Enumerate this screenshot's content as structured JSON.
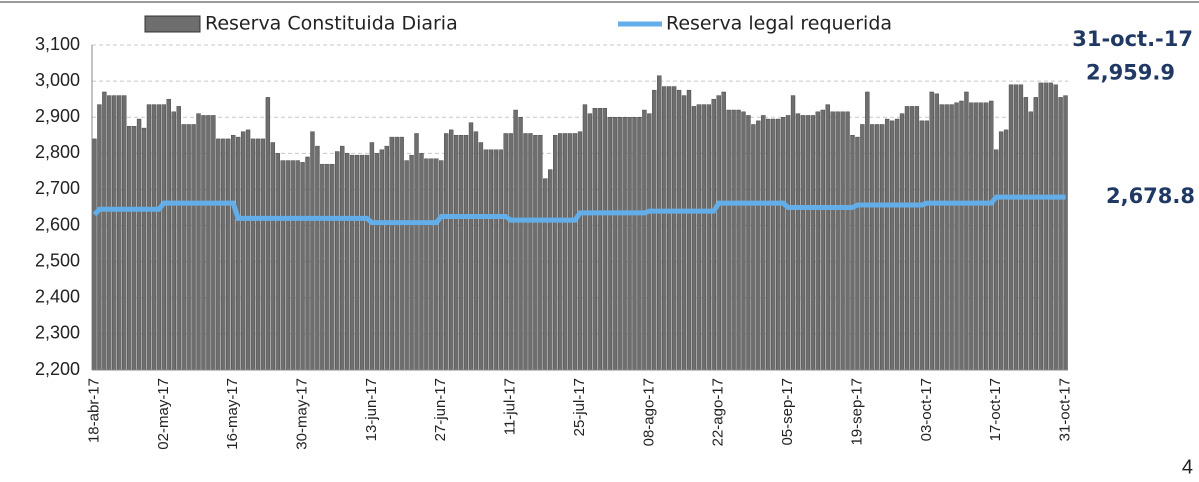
{
  "chart_data": {
    "type": "bar_line",
    "categories": [
      "18-abr-17",
      null,
      null,
      null,
      null,
      null,
      null,
      null,
      null,
      null,
      null,
      null,
      null,
      null,
      "02-may-17",
      null,
      null,
      null,
      null,
      null,
      null,
      null,
      null,
      null,
      null,
      null,
      null,
      null,
      "16-may-17",
      null,
      null,
      null,
      null,
      null,
      null,
      null,
      null,
      null,
      null,
      null,
      null,
      null,
      "30-may-17",
      null,
      null,
      null,
      null,
      null,
      null,
      null,
      null,
      null,
      null,
      null,
      null,
      null,
      "13-jun-17",
      null,
      null,
      null,
      null,
      null,
      null,
      null,
      null,
      null,
      null,
      null,
      null,
      null,
      "27-jun-17",
      null,
      null,
      null,
      null,
      null,
      null,
      null,
      null,
      null,
      null,
      null,
      null,
      null,
      "11-jul-17",
      null,
      null,
      null,
      null,
      null,
      null,
      null,
      null,
      null,
      null,
      null,
      null,
      null,
      "25-jul-17",
      null,
      null,
      null,
      null,
      null,
      null,
      null,
      null,
      null,
      null,
      null,
      null,
      null,
      "08-ago-17",
      null,
      null,
      null,
      null,
      null,
      null,
      null,
      null,
      null,
      null,
      null,
      null,
      null,
      "22-ago-17",
      null,
      null,
      null,
      null,
      null,
      null,
      null,
      null,
      null,
      null,
      null,
      null,
      null,
      "05-sep-17",
      null,
      null,
      null,
      null,
      null,
      null,
      null,
      null,
      null,
      null,
      null,
      null,
      null,
      "19-sep-17",
      null,
      null,
      null,
      null,
      null,
      null,
      null,
      null,
      null,
      null,
      null,
      null,
      null,
      "03-oct-17",
      null,
      null,
      null,
      null,
      null,
      null,
      null,
      null,
      null,
      null,
      null,
      null,
      null,
      "17-oct-17",
      null,
      null,
      null,
      null,
      null,
      null,
      null,
      null,
      null,
      null,
      null,
      null,
      null,
      "31-oct-17"
    ],
    "series": [
      {
        "name": "Reserva Constituida Diaria",
        "color": "#6e6e6e",
        "kind": "bar",
        "values": [
          2840,
          2935,
          2970,
          2960,
          2960,
          2960,
          2960,
          2875,
          2875,
          2895,
          2870,
          2935,
          2935,
          2935,
          2935,
          2950,
          2915,
          2930,
          2880,
          2880,
          2880,
          2910,
          2905,
          2905,
          2905,
          2840,
          2840,
          2840,
          2850,
          2845,
          2860,
          2865,
          2840,
          2840,
          2840,
          2955,
          2830,
          2800,
          2780,
          2780,
          2780,
          2780,
          2775,
          2790,
          2860,
          2820,
          2770,
          2770,
          2770,
          2805,
          2820,
          2800,
          2795,
          2795,
          2795,
          2795,
          2830,
          2800,
          2810,
          2820,
          2845,
          2845,
          2845,
          2780,
          2795,
          2855,
          2800,
          2785,
          2785,
          2785,
          2780,
          2855,
          2865,
          2850,
          2850,
          2850,
          2885,
          2860,
          2830,
          2810,
          2810,
          2810,
          2810,
          2855,
          2855,
          2920,
          2900,
          2855,
          2855,
          2850,
          2850,
          2730,
          2755,
          2850,
          2855,
          2855,
          2855,
          2855,
          2860,
          2935,
          2910,
          2925,
          2925,
          2925,
          2900,
          2900,
          2900,
          2900,
          2900,
          2900,
          2900,
          2920,
          2910,
          2975,
          3015,
          2985,
          2985,
          2985,
          2975,
          2960,
          2975,
          2930,
          2935,
          2935,
          2935,
          2950,
          2960,
          2970,
          2920,
          2920,
          2920,
          2915,
          2905,
          2880,
          2890,
          2905,
          2895,
          2895,
          2895,
          2900,
          2905,
          2960,
          2910,
          2905,
          2905,
          2905,
          2915,
          2920,
          2935,
          2915,
          2915,
          2915,
          2915,
          2850,
          2845,
          2880,
          2970,
          2880,
          2880,
          2880,
          2895,
          2890,
          2895,
          2910,
          2930,
          2930,
          2930,
          2890,
          2890,
          2970,
          2965,
          2935,
          2935,
          2935,
          2940,
          2945,
          2970,
          2940,
          2940,
          2940,
          2940,
          2945,
          2810,
          2860,
          2865,
          2990,
          2990,
          2990,
          2955,
          2915,
          2955,
          2995,
          2995,
          2995,
          2990,
          2955,
          2959.9
        ]
      },
      {
        "name": "Reserva legal requerida",
        "color": "#63aee8",
        "kind": "line",
        "values": [
          2630,
          2645,
          2645,
          2645,
          2645,
          2645,
          2645,
          2645,
          2645,
          2645,
          2645,
          2645,
          2645,
          2645,
          2662,
          2662,
          2662,
          2662,
          2662,
          2662,
          2662,
          2662,
          2662,
          2662,
          2662,
          2662,
          2662,
          2662,
          2662,
          2620,
          2620,
          2620,
          2620,
          2620,
          2620,
          2620,
          2620,
          2620,
          2620,
          2620,
          2620,
          2620,
          2620,
          2620,
          2620,
          2620,
          2620,
          2620,
          2620,
          2620,
          2620,
          2620,
          2620,
          2620,
          2620,
          2620,
          2608,
          2608,
          2608,
          2608,
          2608,
          2608,
          2608,
          2608,
          2608,
          2608,
          2608,
          2608,
          2608,
          2608,
          2625,
          2625,
          2625,
          2625,
          2625,
          2625,
          2625,
          2625,
          2625,
          2625,
          2625,
          2625,
          2625,
          2625,
          2615,
          2615,
          2615,
          2615,
          2615,
          2615,
          2615,
          2615,
          2615,
          2615,
          2615,
          2615,
          2615,
          2615,
          2635,
          2635,
          2635,
          2635,
          2635,
          2635,
          2635,
          2635,
          2635,
          2635,
          2635,
          2635,
          2635,
          2635,
          2640,
          2640,
          2640,
          2640,
          2640,
          2640,
          2640,
          2640,
          2640,
          2640,
          2640,
          2640,
          2640,
          2640,
          2662,
          2662,
          2662,
          2662,
          2662,
          2662,
          2662,
          2662,
          2662,
          2662,
          2662,
          2662,
          2662,
          2662,
          2650,
          2650,
          2650,
          2650,
          2650,
          2650,
          2650,
          2650,
          2650,
          2650,
          2650,
          2650,
          2650,
          2650,
          2657,
          2657,
          2657,
          2657,
          2657,
          2657,
          2657,
          2657,
          2657,
          2657,
          2657,
          2657,
          2657,
          2657,
          2662,
          2662,
          2662,
          2662,
          2662,
          2662,
          2662,
          2662,
          2662,
          2662,
          2662,
          2662,
          2662,
          2662,
          2678.8,
          2678.8,
          2678.8,
          2678.8,
          2678.8,
          2678.8,
          2678.8,
          2678.8,
          2678.8,
          2678.8,
          2678.8,
          2678.8,
          2678.8,
          2678.8,
          2678.8
        ]
      }
    ],
    "ylim": [
      2200,
      3100
    ],
    "yticks": [
      {
        "value": 2200,
        "label": "2,200"
      },
      {
        "value": 2300,
        "label": "2,300"
      },
      {
        "value": 2400,
        "label": "2,400"
      },
      {
        "value": 2500,
        "label": "2,500"
      },
      {
        "value": 2600,
        "label": "2,600"
      },
      {
        "value": 2700,
        "label": "2,700"
      },
      {
        "value": 2800,
        "label": "2,800"
      },
      {
        "value": 2900,
        "label": "2,900"
      },
      {
        "value": 3000,
        "label": "3,000"
      },
      {
        "value": 3100,
        "label": "3,100"
      }
    ],
    "grid": true,
    "annotations": [
      {
        "text": "31-oct.-17"
      },
      {
        "label": "2,959.9",
        "value": 2959.9
      },
      {
        "label": "2,678.8",
        "value": 2678.8
      }
    ]
  },
  "page_number": "4"
}
